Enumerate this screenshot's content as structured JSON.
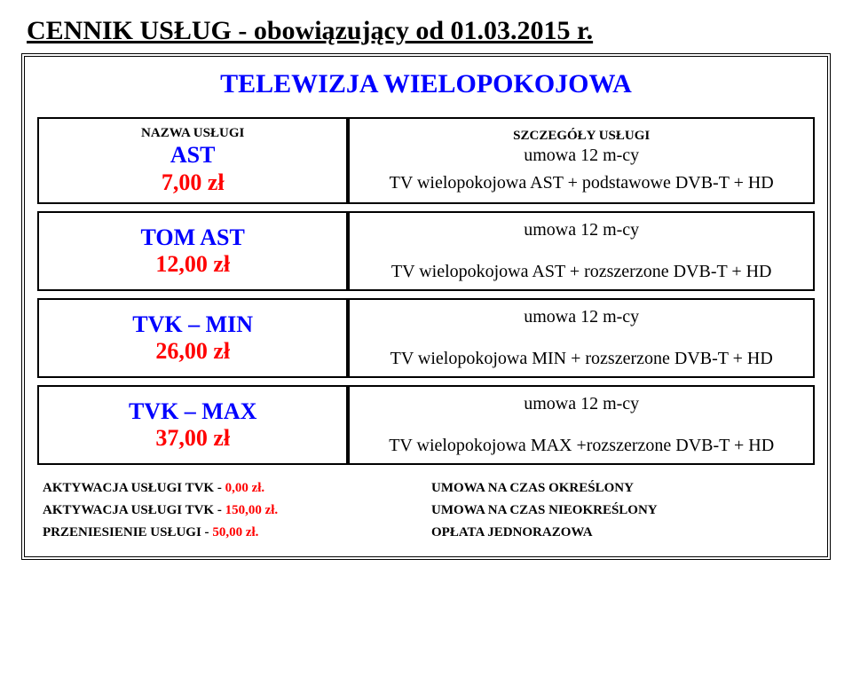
{
  "colors": {
    "blue": "#0000ff",
    "red": "#ff0000",
    "text": "#000000",
    "bg": "#ffffff",
    "border": "#000000"
  },
  "title": "CENNIK USŁUG - obowiązujący od 01.03.2015 r.",
  "tv_title": "TELEWIZJA WIELOPOKOJOWA",
  "headers": {
    "left": "NAZWA USŁUGI",
    "right": "SZCZEGÓŁY USŁUGI"
  },
  "rows": [
    {
      "name": "AST",
      "price": "7,00 zł",
      "name_color": "blue",
      "term": "umowa 12 m-cy",
      "desc": "TV wielopokojowa AST + podstawowe DVB-T + HD"
    },
    {
      "name": "TOM AST",
      "price": "12,00 zł",
      "name_color": "blue",
      "term": "umowa 12 m-cy",
      "desc": "TV wielopokojowa AST + rozszerzone DVB-T + HD"
    },
    {
      "name": "TVK – MIN",
      "price": "26,00 zł",
      "name_color": "blue",
      "term": "umowa 12 m-cy",
      "desc": "TV wielopokojowa MIN  + rozszerzone DVB-T + HD"
    },
    {
      "name": "TVK – MAX",
      "price": "37,00 zł",
      "name_color": "blue",
      "term": "umowa 12 m-cy",
      "desc": "TV wielopokojowa MAX +rozszerzone DVB-T + HD"
    }
  ],
  "footer": [
    {
      "label": "AKTYWACJA USŁUGI TVK -",
      "price": "0,00 zł.",
      "price_color": "red",
      "right": "UMOWA NA CZAS OKREŚLONY"
    },
    {
      "label": "AKTYWACJA USŁUGI TVK -",
      "price": "150,00 zł.",
      "price_color": "red",
      "right": "UMOWA NA CZAS NIEOKREŚLONY"
    },
    {
      "label": "PRZENIESIENIE USŁUGI -",
      "price": "50,00 zł.",
      "price_color": "red",
      "right": "OPŁATA JEDNORAZOWA"
    }
  ]
}
